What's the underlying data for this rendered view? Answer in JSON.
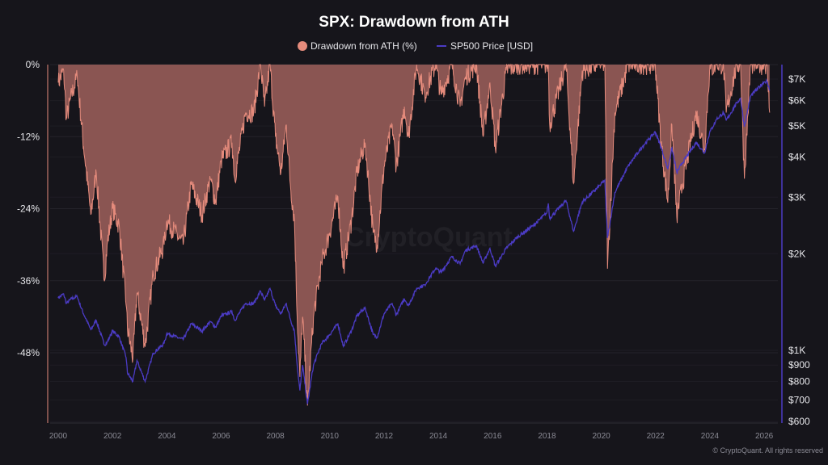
{
  "chart_data": {
    "type": "area",
    "title": "SPX: Drawdown from ATH",
    "legend": [
      "Drawdown from ATH (%)",
      "SP500 Price [USD]"
    ],
    "legend_placement": "top-center",
    "watermark": "CryptoQuant",
    "credit": "© CryptoQuant. All rights reserved",
    "colors": {
      "background": "#16151b",
      "drawdown_fill": "#8a5552",
      "drawdown_line": "#e58b7c",
      "price_line": "#4b3bc4",
      "grid": "#24232b"
    },
    "x_axis": {
      "type": "date",
      "range": [
        1999.7,
        2026.5
      ],
      "ticks": [
        "2000",
        "2002",
        "2004",
        "2006",
        "2008",
        "2010",
        "2012",
        "2014",
        "2016",
        "2018",
        "2020",
        "2022",
        "2024",
        "2026"
      ]
    },
    "y_left": {
      "label": "",
      "range": [
        -60,
        0
      ],
      "ticks": [
        0,
        -12,
        -24,
        -36,
        -48
      ],
      "tick_labels": [
        "0%",
        "-12%",
        "-24%",
        "-36%",
        "-48%"
      ]
    },
    "y_right": {
      "label": "",
      "scale": "log",
      "range": [
        600,
        7770
      ],
      "ticks": [
        7000,
        6000,
        5000,
        4000,
        3000,
        2000,
        1000,
        900,
        800,
        700,
        600
      ],
      "tick_labels": [
        "$7K",
        "$6K",
        "$5K",
        "$4K",
        "$3K",
        "$2K",
        "$1K",
        "$900",
        "$800",
        "$700",
        "$600"
      ]
    },
    "grid": true,
    "x": [
      2000.0,
      2000.2,
      2000.3,
      2000.5,
      2000.7,
      2000.9,
      2001.2,
      2001.4,
      2001.7,
      2001.8,
      2002.0,
      2002.25,
      2002.5,
      2002.55,
      2002.75,
      2002.9,
      2003.2,
      2003.5,
      2003.9,
      2004.0,
      2004.6,
      2004.9,
      2005.3,
      2005.6,
      2005.8,
      2006.0,
      2006.4,
      2006.5,
      2006.9,
      2007.2,
      2007.45,
      2007.6,
      2007.8,
      2008.0,
      2008.2,
      2008.4,
      2008.55,
      2008.7,
      2008.8,
      2008.9,
      2009.0,
      2009.18,
      2009.4,
      2009.7,
      2010.0,
      2010.3,
      2010.5,
      2010.8,
      2011.0,
      2011.3,
      2011.6,
      2011.75,
      2012.0,
      2012.3,
      2012.45,
      2012.75,
      2012.9,
      2013.2,
      2013.5,
      2013.9,
      2014.1,
      2014.5,
      2014.8,
      2015.0,
      2015.4,
      2015.65,
      2015.9,
      2016.1,
      2016.5,
      2016.9,
      2017.5,
      2017.99,
      2018.05,
      2018.1,
      2018.7,
      2018.98,
      2019.3,
      2019.9,
      2020.13,
      2020.23,
      2020.5,
      2020.99,
      2021.5,
      2021.99,
      2022.2,
      2022.45,
      2022.6,
      2022.78,
      2022.99,
      2023.5,
      2023.8,
      2023.99,
      2024.25,
      2024.5,
      2024.6,
      2024.99,
      2025.13,
      2025.27,
      2025.5,
      2025.99,
      2026.1,
      2026.2
    ],
    "series": [
      {
        "name": "Drawdown from ATH (%)",
        "axis": "left",
        "values": [
          -3,
          -1,
          -9,
          -5,
          -2,
          -12,
          -25,
          -18,
          -36,
          -30,
          -24,
          -27,
          -40,
          -44,
          -49,
          -38,
          -47,
          -35,
          -30,
          -26,
          -30,
          -20,
          -25,
          -19,
          -23,
          -16,
          -13,
          -19,
          -8,
          -8,
          0,
          -7,
          0,
          -12,
          -18,
          -10,
          -20,
          -26,
          -42,
          -52,
          -42,
          -56.8,
          -42,
          -33,
          -28,
          -22,
          -34,
          -26,
          -18,
          -13,
          -28,
          -30,
          -17,
          -10,
          -17,
          -7,
          -12,
          0,
          -5,
          0,
          -5,
          0,
          -7,
          -2,
          0,
          -12,
          -3,
          -14,
          -1,
          0,
          0,
          0,
          0,
          -10,
          0,
          -19.8,
          -1,
          0,
          0,
          -34,
          -8,
          0,
          0,
          0,
          -13,
          -23,
          -10,
          -25.4,
          -20,
          -8,
          -14,
          -1,
          0,
          0,
          -8,
          0,
          0,
          -19,
          0,
          0,
          0,
          -8
        ]
      },
      {
        "name": "SP500 Price [USD]",
        "axis": "right",
        "values": [
          1455,
          1500,
          1400,
          1450,
          1470,
          1320,
          1160,
          1240,
          1040,
          1060,
          1150,
          1100,
          950,
          850,
          800,
          930,
          800,
          980,
          1050,
          1130,
          1080,
          1210,
          1150,
          1230,
          1180,
          1280,
          1320,
          1240,
          1400,
          1400,
          1530,
          1430,
          1560,
          1380,
          1300,
          1400,
          1250,
          1150,
          900,
          750,
          900,
          680,
          900,
          1050,
          1120,
          1210,
          1030,
          1150,
          1280,
          1360,
          1120,
          1100,
          1300,
          1400,
          1290,
          1450,
          1380,
          1560,
          1600,
          1800,
          1750,
          1960,
          1860,
          2050,
          2120,
          1870,
          2080,
          1830,
          2080,
          2250,
          2450,
          2680,
          2870,
          2580,
          2930,
          2350,
          2900,
          3230,
          3390,
          2240,
          3100,
          3750,
          4300,
          4790,
          4300,
          3670,
          4280,
          3580,
          3840,
          4450,
          4120,
          4770,
          5250,
          5500,
          5200,
          5900,
          6100,
          4980,
          6200,
          6850,
          6900,
          6450
        ]
      }
    ]
  }
}
